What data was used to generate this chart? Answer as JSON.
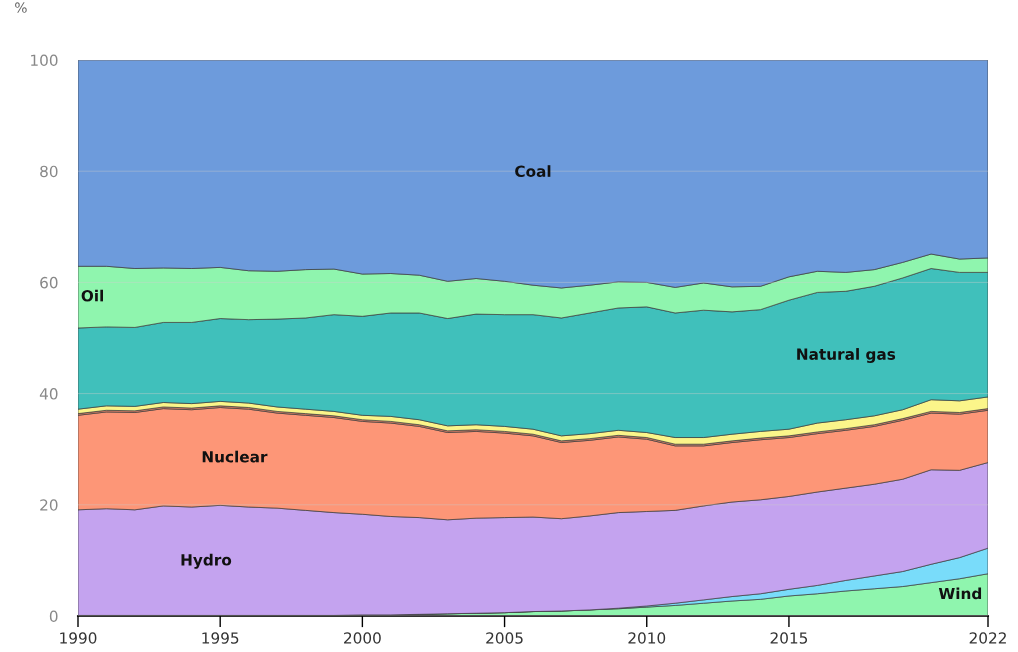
{
  "chart_data": {
    "type": "area",
    "stacked": true,
    "ylabel": "%",
    "grid": "y",
    "x": [
      1990,
      1991,
      1992,
      1993,
      1994,
      1995,
      1996,
      1997,
      1998,
      1999,
      2000,
      2001,
      2002,
      2003,
      2004,
      2005,
      2006,
      2007,
      2008,
      2009,
      2010,
      2011,
      2012,
      2013,
      2014,
      2015,
      2016,
      2017,
      2018,
      2019,
      2020,
      2021,
      2022
    ],
    "xlim": [
      1990,
      2022
    ],
    "xticks": [
      1990,
      1995,
      2000,
      2005,
      2010,
      2015,
      2022
    ],
    "ylim": [
      0,
      100
    ],
    "yticks": [
      0,
      20,
      40,
      60,
      80,
      100
    ],
    "series": [
      {
        "name": "Wind",
        "color": "#8ff5ae",
        "values": [
          0.1,
          0.1,
          0.1,
          0.1,
          0.1,
          0.1,
          0.1,
          0.1,
          0.1,
          0.1,
          0.2,
          0.2,
          0.3,
          0.4,
          0.5,
          0.6,
          0.8,
          0.9,
          1.1,
          1.3,
          1.6,
          1.9,
          2.3,
          2.7,
          3.0,
          3.6,
          4.0,
          4.5,
          4.9,
          5.3,
          6.0,
          6.7,
          7.6
        ]
      },
      {
        "color": "#79dcfa",
        "values": [
          0,
          0,
          0,
          0,
          0,
          0,
          0,
          0,
          0,
          0,
          0,
          0,
          0,
          0,
          0,
          0,
          0,
          0,
          0,
          0.1,
          0.2,
          0.4,
          0.6,
          0.8,
          1.0,
          1.2,
          1.5,
          1.9,
          2.3,
          2.7,
          3.3,
          3.8,
          4.6
        ]
      },
      {
        "name": "Hydro",
        "color": "#c4a3ef",
        "values": [
          19.0,
          19.2,
          19.0,
          19.7,
          19.5,
          19.8,
          19.5,
          19.3,
          18.9,
          18.5,
          18.1,
          17.7,
          17.4,
          16.9,
          17.1,
          17.1,
          17.0,
          16.6,
          16.9,
          17.2,
          17.0,
          16.7,
          16.9,
          17.0,
          16.9,
          16.7,
          16.8,
          16.6,
          16.5,
          16.6,
          17.0,
          15.7,
          15.4
        ]
      },
      {
        "name": "Nuclear",
        "color": "#fd9677",
        "values": [
          17.0,
          17.4,
          17.5,
          17.5,
          17.5,
          17.6,
          17.6,
          17.1,
          17.1,
          17.1,
          16.7,
          16.8,
          16.4,
          15.7,
          15.6,
          15.2,
          14.6,
          13.7,
          13.6,
          13.6,
          13.0,
          11.6,
          10.8,
          10.7,
          10.8,
          10.6,
          10.5,
          10.4,
          10.4,
          10.6,
          10.2,
          10.1,
          9.4
        ]
      },
      {
        "color": "#e0836a",
        "values": [
          0.3,
          0.3,
          0.3,
          0.3,
          0.3,
          0.3,
          0.3,
          0.3,
          0.3,
          0.3,
          0.3,
          0.3,
          0.3,
          0.3,
          0.3,
          0.3,
          0.3,
          0.3,
          0.3,
          0.3,
          0.3,
          0.3,
          0.3,
          0.3,
          0.3,
          0.3,
          0.3,
          0.3,
          0.3,
          0.3,
          0.3,
          0.3,
          0.3
        ]
      },
      {
        "color": "#fbf58a",
        "values": [
          0.8,
          0.8,
          0.8,
          0.8,
          0.8,
          0.8,
          0.8,
          0.8,
          0.8,
          0.8,
          0.8,
          0.9,
          0.9,
          0.9,
          0.9,
          0.9,
          0.9,
          0.9,
          0.9,
          0.9,
          0.9,
          1.2,
          1.2,
          1.2,
          1.2,
          1.2,
          1.6,
          1.6,
          1.6,
          1.6,
          2.1,
          2.1,
          2.1
        ]
      },
      {
        "name": "Natural gas",
        "color": "#40c0bb",
        "values": [
          14.6,
          14.2,
          14.2,
          14.4,
          14.6,
          14.9,
          15.0,
          15.8,
          16.4,
          17.4,
          17.8,
          18.6,
          19.2,
          19.3,
          19.9,
          20.1,
          20.6,
          21.2,
          21.7,
          22.0,
          22.6,
          22.4,
          22.9,
          22.0,
          21.9,
          23.2,
          23.5,
          23.1,
          23.3,
          23.7,
          23.6,
          23.1,
          22.4
        ]
      },
      {
        "name": "Oil",
        "color": "#8ff5ae",
        "values": [
          11.1,
          10.9,
          10.6,
          9.8,
          9.7,
          9.2,
          8.8,
          8.6,
          8.7,
          8.2,
          7.6,
          7.1,
          6.8,
          6.7,
          6.4,
          6.0,
          5.3,
          5.4,
          5.0,
          4.7,
          4.4,
          4.6,
          4.9,
          4.5,
          4.2,
          4.2,
          3.8,
          3.4,
          3.0,
          2.8,
          2.6,
          2.4,
          2.6
        ]
      },
      {
        "name": "Coal",
        "color": "#6d9bdc",
        "values": [
          37.1,
          37.1,
          37.5,
          37.4,
          37.5,
          37.3,
          37.9,
          38.0,
          37.7,
          37.6,
          38.5,
          38.4,
          38.7,
          39.8,
          39.3,
          39.8,
          40.5,
          41.0,
          40.5,
          39.9,
          40.0,
          40.9,
          40.1,
          40.8,
          40.7,
          39.0,
          38.0,
          38.2,
          37.7,
          36.4,
          34.9,
          35.8,
          35.6
        ]
      }
    ]
  }
}
